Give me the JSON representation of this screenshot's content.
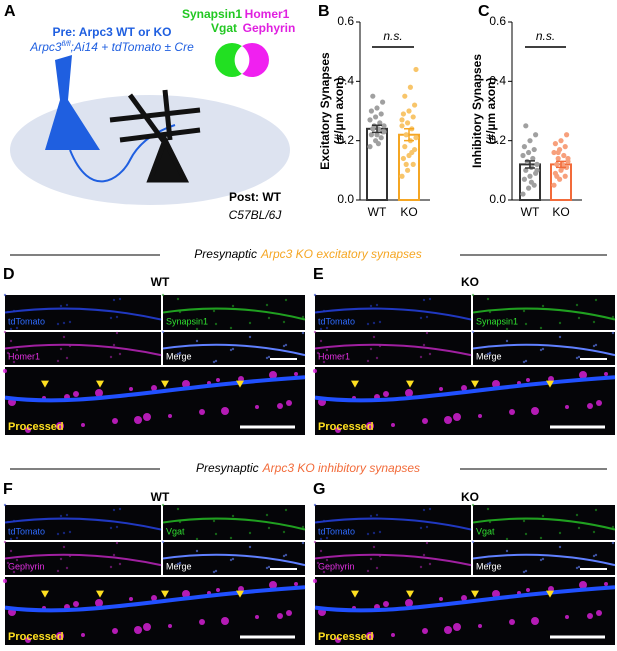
{
  "panel_a": {
    "label": "A",
    "title": "Pre: Arpc3 WT or KO",
    "genotype": [
      "Arpc3",
      "fl/fl",
      ";Ai14 + tdTomato ± Cre"
    ],
    "markers": [
      "Synapsin1",
      "Homer1",
      "Vgat",
      "Gephyrin"
    ],
    "post": "Post: WT",
    "strain": "C57BL/6J"
  },
  "chart_data": [
    {
      "type": "bar",
      "label": "B",
      "ylabel": [
        "Excitatory Synapses",
        "(#/µm axon)"
      ],
      "categories": [
        "WT",
        "KO"
      ],
      "values": [
        0.24,
        0.22
      ],
      "errors": [
        0.012,
        0.02
      ],
      "colors": [
        "#333333",
        "#f5a623"
      ],
      "point_colors": [
        "#a0a0a0",
        "#f8c56a"
      ],
      "points": [
        [
          0.18,
          0.2,
          0.21,
          0.22,
          0.22,
          0.23,
          0.24,
          0.24,
          0.25,
          0.25,
          0.26,
          0.27,
          0.28,
          0.29,
          0.3,
          0.31,
          0.33,
          0.35,
          0.19,
          0.23
        ],
        [
          0.08,
          0.1,
          0.12,
          0.14,
          0.15,
          0.17,
          0.18,
          0.2,
          0.21,
          0.22,
          0.24,
          0.25,
          0.26,
          0.28,
          0.29,
          0.3,
          0.32,
          0.35,
          0.38,
          0.44,
          0.12,
          0.16,
          0.27
        ]
      ],
      "ylim": [
        0,
        0.6
      ],
      "yticks": [
        {
          "value": 0,
          "label": "0.0"
        },
        0.2,
        0.4,
        0.6
      ],
      "annotation": "n.s."
    },
    {
      "type": "bar",
      "label": "C",
      "ylabel": [
        "Inhibitory Synapses",
        "(#/µm axon)"
      ],
      "categories": [
        "WT",
        "KO"
      ],
      "values": [
        0.12,
        0.12
      ],
      "errors": [
        0.012,
        0.01
      ],
      "colors": [
        "#333333",
        "#f26b3a"
      ],
      "point_colors": [
        "#a0a0a0",
        "#f7a07c"
      ],
      "points": [
        [
          0.02,
          0.04,
          0.05,
          0.07,
          0.08,
          0.09,
          0.1,
          0.11,
          0.12,
          0.13,
          0.14,
          0.15,
          0.16,
          0.17,
          0.18,
          0.2,
          0.22,
          0.25,
          0.06,
          0.1
        ],
        [
          0.05,
          0.07,
          0.08,
          0.09,
          0.1,
          0.11,
          0.12,
          0.12,
          0.13,
          0.14,
          0.15,
          0.16,
          0.17,
          0.18,
          0.19,
          0.2,
          0.22,
          0.08,
          0.11,
          0.14,
          0.16
        ]
      ],
      "ylim": [
        0,
        0.6
      ],
      "yticks": [
        {
          "value": 0,
          "label": "0.0"
        },
        0.2,
        0.4,
        0.6
      ],
      "annotation": "n.s."
    }
  ],
  "sections": [
    {
      "prefix": "Presynaptic",
      "highlight": "Arpc3 KO excitatory synapses"
    },
    {
      "prefix": "Presynaptic",
      "highlight": "Arpc3 KO inhibitory synapses"
    }
  ],
  "image_panels": [
    {
      "label": "D",
      "condition": "WT",
      "channels": [
        "tdTomato",
        "Synapsin1",
        "Homer1",
        "Merge",
        "Processed"
      ]
    },
    {
      "label": "E",
      "condition": "KO",
      "channels": [
        "tdTomato",
        "Synapsin1",
        "Homer1",
        "Merge",
        "Processed"
      ]
    },
    {
      "label": "F",
      "condition": "WT",
      "channels": [
        "tdTomato",
        "Vgat",
        "Gephyrin",
        "Merge",
        "Processed"
      ]
    },
    {
      "label": "G",
      "condition": "KO",
      "channels": [
        "tdTomato",
        "Vgat",
        "Gephyrin",
        "Merge",
        "Processed"
      ]
    }
  ]
}
